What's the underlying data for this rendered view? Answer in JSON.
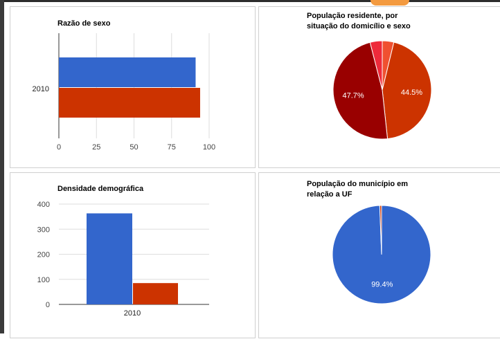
{
  "chart_data": [
    {
      "type": "bar",
      "orientation": "horizontal",
      "title": "Razão de sexo",
      "categories": [
        "2010"
      ],
      "series": [
        {
          "values": [
            91
          ],
          "color": "#3366cc"
        },
        {
          "values": [
            94
          ],
          "color": "#cc3300"
        }
      ],
      "xlim": [
        0,
        100
      ],
      "xticks": [
        "0",
        "25",
        "50",
        "75",
        "100"
      ],
      "grid": true
    },
    {
      "type": "pie",
      "title_lines": [
        "População residente, por",
        "situação do domicílio e sexo"
      ],
      "slices": [
        {
          "value": 3.8,
          "color": "#f05030",
          "label": ""
        },
        {
          "value": 44.5,
          "color": "#cc3300",
          "label": "44.5%"
        },
        {
          "value": 47.7,
          "color": "#990000",
          "label": "47.7%"
        },
        {
          "value": 4.0,
          "color": "#ee2a3a",
          "label": ""
        }
      ]
    },
    {
      "type": "bar",
      "orientation": "vertical",
      "title": "Densidade demográfica",
      "categories": [
        "2010"
      ],
      "series": [
        {
          "values": [
            363
          ],
          "color": "#3366cc"
        },
        {
          "values": [
            85
          ],
          "color": "#cc3300"
        }
      ],
      "ylim": [
        0,
        400
      ],
      "yticks": [
        "0",
        "100",
        "200",
        "300",
        "400"
      ],
      "grid": true
    },
    {
      "type": "pie",
      "title_lines": [
        "População do município em",
        "relação a UF"
      ],
      "slices": [
        {
          "value": 99.4,
          "color": "#3366cc",
          "label": "99.4%"
        },
        {
          "value": 0.6,
          "color": "#cc3300",
          "label": ""
        }
      ]
    }
  ]
}
